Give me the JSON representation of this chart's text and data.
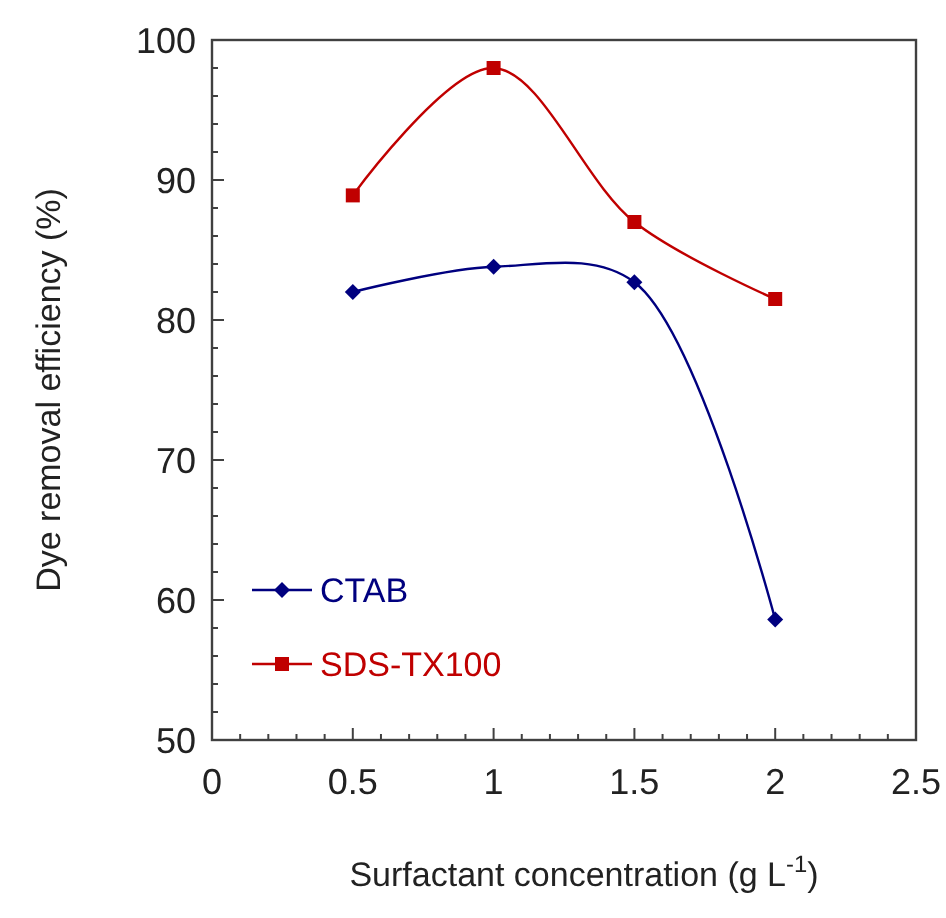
{
  "chart_data": {
    "type": "line",
    "xlabel": "Surfactant concentration (g L$^{-1}$)",
    "ylabel": "Dye removal efficiency (%)",
    "x": [
      0.5,
      1,
      1.5,
      2
    ],
    "xlim": [
      0,
      2.5
    ],
    "xticks": [
      0,
      0.5,
      1,
      1.5,
      2,
      2.5
    ],
    "ylim": [
      50,
      100
    ],
    "yticks": [
      50,
      60,
      70,
      80,
      90,
      100
    ],
    "legend": "bottom left",
    "grid": false,
    "series": [
      {
        "name": "CTAB",
        "color": "#00007f",
        "marker": "diamond",
        "values": [
          82.0,
          83.8,
          82.7,
          58.6
        ]
      },
      {
        "name": "SDS-TX100",
        "color": "#c00000",
        "marker": "square",
        "values": [
          88.9,
          98.0,
          87.0,
          81.5
        ]
      }
    ]
  }
}
